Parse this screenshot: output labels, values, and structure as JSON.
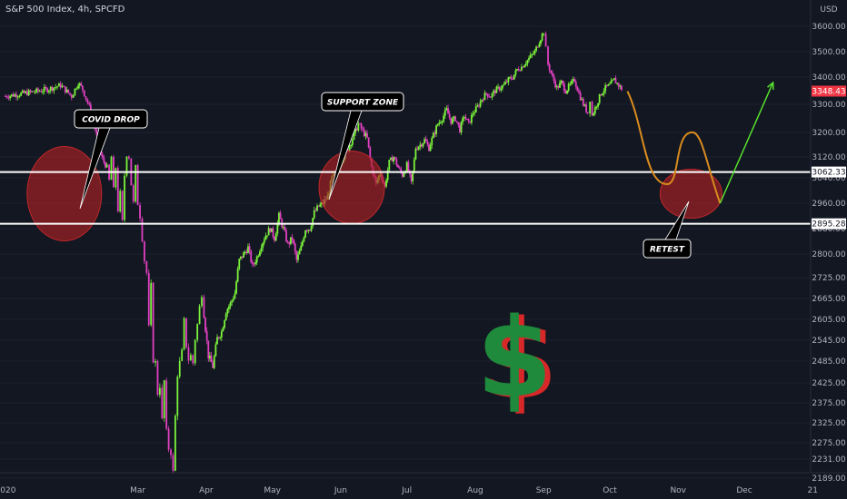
{
  "chart_data": {
    "type": "candlestick",
    "title": "S&P 500 Index, 4h, SPCFD",
    "currency": "USD",
    "y_ticks": [
      3600.0,
      3500.0,
      3400.0,
      3300.0,
      3200.0,
      3120.0,
      3040.0,
      2960.0,
      2880.0,
      2800.0,
      2725.0,
      2665.0,
      2605.0,
      2545.0,
      2485.0,
      2425.0,
      2375.0,
      2325.0,
      2275.0,
      2231.0,
      2189.0
    ],
    "x_ticks": [
      {
        "label": "2020",
        "day": 0
      },
      {
        "label": "Mar",
        "day": 60
      },
      {
        "label": "Apr",
        "day": 91
      },
      {
        "label": "May",
        "day": 121
      },
      {
        "label": "Jun",
        "day": 152
      },
      {
        "label": "Jul",
        "day": 182
      },
      {
        "label": "Aug",
        "day": 213
      },
      {
        "label": "Sep",
        "day": 244
      },
      {
        "label": "Oct",
        "day": 274
      },
      {
        "label": "Nov",
        "day": 305
      },
      {
        "label": "Dec",
        "day": 335
      },
      {
        "label": "21",
        "day": 366
      }
    ],
    "ohlc_path": [
      [
        0,
        3330
      ],
      [
        12,
        3345
      ],
      [
        19,
        3355
      ],
      [
        25,
        3370
      ],
      [
        30,
        3330
      ],
      [
        33,
        3380
      ],
      [
        35,
        3355
      ],
      [
        38,
        3290
      ],
      [
        40,
        3240
      ],
      [
        42,
        3160
      ],
      [
        44,
        3110
      ],
      [
        46,
        3080
      ],
      [
        47,
        3030
      ],
      [
        48,
        3120
      ],
      [
        49,
        3000
      ],
      [
        50,
        3080
      ],
      [
        51,
        2940
      ],
      [
        52,
        2990
      ],
      [
        53,
        2900
      ],
      [
        54,
        3050
      ],
      [
        55,
        3130
      ],
      [
        56,
        3120
      ],
      [
        57,
        3020
      ],
      [
        58,
        2960
      ],
      [
        59,
        3080
      ],
      [
        60,
        2960
      ],
      [
        61,
        2920
      ],
      [
        62,
        2850
      ],
      [
        63,
        2780
      ],
      [
        64,
        2740
      ],
      [
        65,
        2580
      ],
      [
        66,
        2700
      ],
      [
        67,
        2490
      ],
      [
        68,
        2480
      ],
      [
        69,
        2400
      ],
      [
        70,
        2420
      ],
      [
        71,
        2330
      ],
      [
        72,
        2430
      ],
      [
        73,
        2300
      ],
      [
        74,
        2260
      ],
      [
        75,
        2250
      ],
      [
        76,
        2200
      ],
      [
        77,
        2340
      ],
      [
        78,
        2450
      ],
      [
        79,
        2480
      ],
      [
        80,
        2510
      ],
      [
        81,
        2600
      ],
      [
        82,
        2530
      ],
      [
        83,
        2490
      ],
      [
        84,
        2500
      ],
      [
        85,
        2480
      ],
      [
        86,
        2550
      ],
      [
        87,
        2590
      ],
      [
        88,
        2640
      ],
      [
        89,
        2680
      ],
      [
        90,
        2620
      ],
      [
        92,
        2500
      ],
      [
        94,
        2470
      ],
      [
        96,
        2550
      ],
      [
        98,
        2570
      ],
      [
        100,
        2630
      ],
      [
        102,
        2650
      ],
      [
        104,
        2680
      ],
      [
        106,
        2780
      ],
      [
        108,
        2800
      ],
      [
        110,
        2820
      ],
      [
        112,
        2760
      ],
      [
        114,
        2790
      ],
      [
        116,
        2830
      ],
      [
        118,
        2860
      ],
      [
        120,
        2880
      ],
      [
        122,
        2850
      ],
      [
        124,
        2920
      ],
      [
        126,
        2880
      ],
      [
        128,
        2830
      ],
      [
        130,
        2850
      ],
      [
        132,
        2780
      ],
      [
        134,
        2820
      ],
      [
        136,
        2880
      ],
      [
        138,
        2880
      ],
      [
        140,
        2930
      ],
      [
        142,
        2950
      ],
      [
        144,
        2960
      ],
      [
        146,
        2980
      ],
      [
        148,
        3040
      ],
      [
        150,
        3060
      ],
      [
        152,
        3100
      ],
      [
        154,
        3130
      ],
      [
        156,
        3160
      ],
      [
        158,
        3190
      ],
      [
        160,
        3230
      ],
      [
        162,
        3205
      ],
      [
        164,
        3180
      ],
      [
        166,
        3080
      ],
      [
        168,
        3020
      ],
      [
        170,
        3060
      ],
      [
        172,
        3010
      ],
      [
        174,
        3100
      ],
      [
        176,
        3120
      ],
      [
        178,
        3080
      ],
      [
        180,
        3050
      ],
      [
        182,
        3090
      ],
      [
        184,
        3020
      ],
      [
        186,
        3150
      ],
      [
        188,
        3160
      ],
      [
        190,
        3175
      ],
      [
        192,
        3150
      ],
      [
        194,
        3190
      ],
      [
        196,
        3230
      ],
      [
        198,
        3250
      ],
      [
        200,
        3280
      ],
      [
        202,
        3240
      ],
      [
        204,
        3250
      ],
      [
        206,
        3210
      ],
      [
        208,
        3260
      ],
      [
        210,
        3230
      ],
      [
        212,
        3270
      ],
      [
        214,
        3290
      ],
      [
        216,
        3320
      ],
      [
        218,
        3340
      ],
      [
        220,
        3330
      ],
      [
        222,
        3350
      ],
      [
        224,
        3360
      ],
      [
        226,
        3370
      ],
      [
        228,
        3390
      ],
      [
        230,
        3400
      ],
      [
        232,
        3430
      ],
      [
        234,
        3440
      ],
      [
        236,
        3460
      ],
      [
        238,
        3480
      ],
      [
        240,
        3500
      ],
      [
        242,
        3540
      ],
      [
        244,
        3580
      ],
      [
        245,
        3510
      ],
      [
        246,
        3450
      ],
      [
        248,
        3400
      ],
      [
        250,
        3360
      ],
      [
        252,
        3380
      ],
      [
        254,
        3350
      ],
      [
        256,
        3370
      ],
      [
        258,
        3390
      ],
      [
        260,
        3340
      ],
      [
        262,
        3300
      ],
      [
        264,
        3270
      ],
      [
        265,
        3320
      ],
      [
        266,
        3260
      ],
      [
        268,
        3300
      ],
      [
        270,
        3340
      ],
      [
        272,
        3360
      ],
      [
        274,
        3370
      ],
      [
        276,
        3390
      ],
      [
        278,
        3370
      ],
      [
        280,
        3350
      ]
    ],
    "projection_orange": [
      [
        282,
        3348
      ],
      [
        300,
        3020
      ],
      [
        312,
        3200
      ],
      [
        324,
        2960
      ]
    ],
    "projection_green": [
      [
        324,
        2960
      ],
      [
        348,
        3380
      ]
    ],
    "levels": [
      {
        "value": 3062.33,
        "label": "3062.33"
      },
      {
        "value": 2895.28,
        "label": "2895.28"
      }
    ],
    "current_price": {
      "value": 3348.43,
      "label": "3348.43"
    },
    "annotations": [
      {
        "text": "COVID DROP",
        "zone_day": 51,
        "zone_price": 2990
      },
      {
        "text": "SUPPORT ZONE",
        "zone_day": 164,
        "zone_price": 3010
      },
      {
        "text": "RETEST",
        "zone_day": 324,
        "zone_price": 2990
      }
    ],
    "up_color": "#7bf33a",
    "down_color": "#e040c0",
    "zone_color": "#b22222",
    "projection_orange_color": "#d98b1e",
    "projection_green_color": "#57e02d",
    "symbol": "$"
  }
}
